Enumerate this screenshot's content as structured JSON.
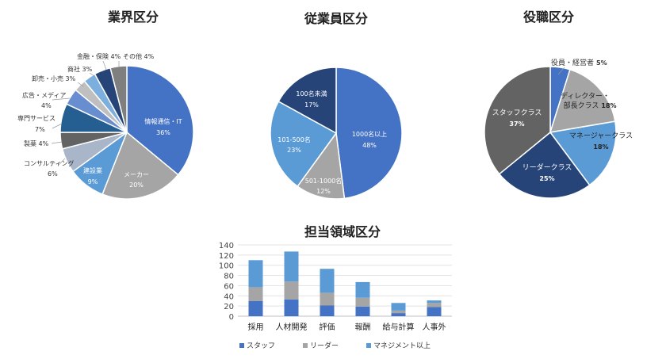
{
  "chart_data": [
    {
      "type": "pie",
      "title": "業界区分",
      "slices": [
        {
          "label": "情報通信・IT",
          "value": 36,
          "pct_label": "36%",
          "color": "#4472C4"
        },
        {
          "label": "メーカー",
          "value": 20,
          "pct_label": "20%",
          "color": "#A5A5A5"
        },
        {
          "label": "建設業",
          "value": 9,
          "pct_label": "9%",
          "color": "#5B9BD5"
        },
        {
          "label": "コンサルティング",
          "value": 6,
          "pct_label": "6%",
          "color": "#A9B5C9"
        },
        {
          "label": "製薬",
          "value": 4,
          "pct_label": "4%",
          "color": "#636363"
        },
        {
          "label": "専門サービス",
          "value": 7,
          "pct_label": "7%",
          "color": "#255E91"
        },
        {
          "label": "広告・メディア",
          "value": 4,
          "pct_label": "4%",
          "color": "#698ED0"
        },
        {
          "label": "卸売・小売",
          "value": 3,
          "pct_label": "3%",
          "color": "#BFBFBF"
        },
        {
          "label": "商社",
          "value": 3,
          "pct_label": "3%",
          "color": "#7CAFDD"
        },
        {
          "label": "金融・保険",
          "value": 4,
          "pct_label": "4%",
          "color": "#264478"
        },
        {
          "label": "その他",
          "value": 4,
          "pct_label": "4%",
          "color": "#7F7F7F"
        }
      ],
      "annotations": [
        "金融・保険 4%",
        "その他 4%",
        "商社 3%",
        "卸売・小売 3%",
        "広告・メディア",
        "4%",
        "専門サービス",
        "7%",
        "製薬 4%",
        "コンサルティング",
        "6%"
      ]
    },
    {
      "type": "pie",
      "title": "従業員区分",
      "slices": [
        {
          "label": "1000名以上",
          "value": 48,
          "pct_label": "48%",
          "color": "#4472C4"
        },
        {
          "label": "501-1000名",
          "value": 12,
          "pct_label": "12%",
          "color": "#A5A5A5"
        },
        {
          "label": "101-500名",
          "value": 23,
          "pct_label": "23%",
          "color": "#5B9BD5"
        },
        {
          "label": "100名未満",
          "value": 17,
          "pct_label": "17%",
          "color": "#264478"
        }
      ]
    },
    {
      "type": "pie",
      "title": "役職区分",
      "slices": [
        {
          "label": "役員・経営者",
          "value": 5,
          "pct_label": "5%",
          "color": "#4472C4"
        },
        {
          "label": "ディレクター・部長クラス",
          "value": 18,
          "pct_label": "18%",
          "color": "#A5A5A5"
        },
        {
          "label": "マネージャークラス",
          "value": 18,
          "pct_label": "18%",
          "color": "#5B9BD5"
        },
        {
          "label": "リーダークラス",
          "value": 25,
          "pct_label": "25%",
          "color": "#264478"
        },
        {
          "label": "スタッフクラス",
          "value": 37,
          "pct_label": "37%",
          "color": "#636363"
        }
      ]
    },
    {
      "type": "bar",
      "stacked": true,
      "title": "担当領域区分",
      "categories": [
        "採用",
        "人材開発",
        "評価",
        "報酬",
        "給与計算",
        "人事外"
      ],
      "series": [
        {
          "name": "スタッフ",
          "color": "#4472C4",
          "values": [
            30,
            33,
            21,
            19,
            6,
            18
          ]
        },
        {
          "name": "リーダー",
          "color": "#A5A5A5",
          "values": [
            27,
            35,
            25,
            17,
            5,
            8
          ]
        },
        {
          "name": "マネジメント以上",
          "color": "#5B9BD5",
          "values": [
            53,
            59,
            47,
            31,
            15,
            5
          ]
        }
      ],
      "ylim": [
        0,
        140
      ],
      "yticks": [
        0,
        20,
        40,
        60,
        80,
        100,
        120,
        140
      ],
      "grid": true,
      "legend": "bottom"
    }
  ]
}
